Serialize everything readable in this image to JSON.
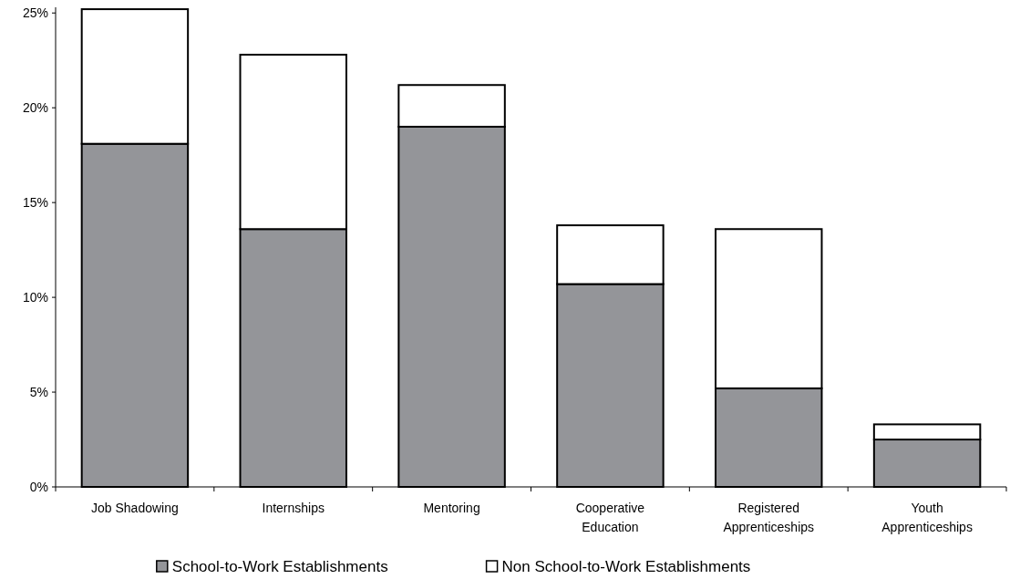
{
  "chart_data": {
    "type": "bar",
    "stacked": true,
    "categories": [
      "Job Shadowing",
      "Internships",
      "Mentoring",
      "Cooperative Education",
      "Registered Apprenticeships",
      "Youth Apprenticeships"
    ],
    "series": [
      {
        "name": "School-to-Work Establishments",
        "color": "#949599",
        "values": [
          18.1,
          13.6,
          19.0,
          10.7,
          5.2,
          2.5
        ]
      },
      {
        "name": "Non School-to-Work Establishments",
        "color": "#ffffff",
        "values": [
          7.1,
          9.2,
          2.2,
          3.1,
          8.4,
          0.8
        ]
      }
    ],
    "ylim": [
      0,
      25.3
    ],
    "yticks": [
      {
        "value": 0,
        "label": "0%"
      },
      {
        "value": 5,
        "label": "5%"
      },
      {
        "value": 10,
        "label": "10%"
      },
      {
        "value": 15,
        "label": "15%"
      },
      {
        "value": 20,
        "label": "20%"
      },
      {
        "value": 25,
        "label": "25%"
      }
    ],
    "grid": false,
    "legend": "bottom"
  }
}
